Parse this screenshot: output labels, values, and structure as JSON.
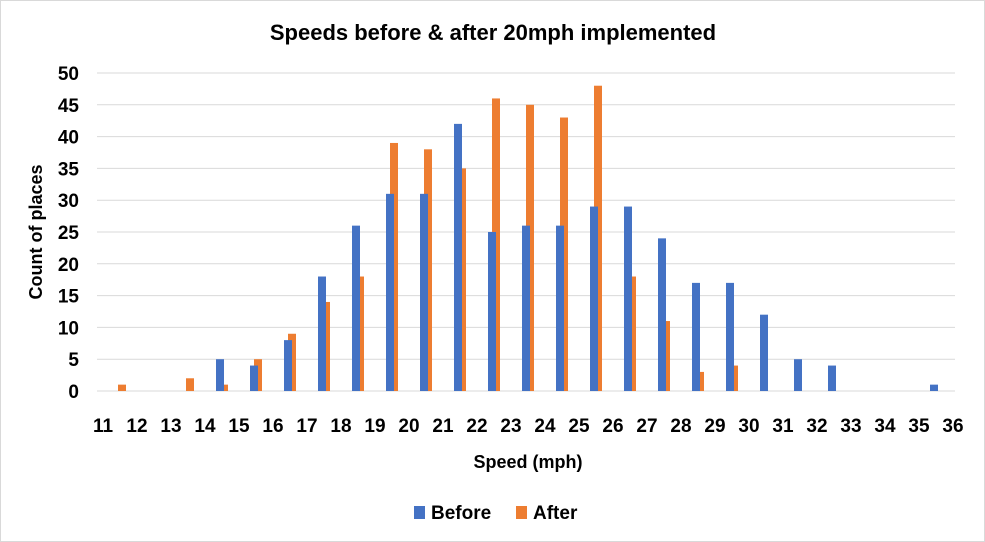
{
  "chart_data": {
    "type": "bar",
    "title": "Speeds before & after 20mph implemented",
    "xlabel": "Speed (mph)",
    "ylabel": "Count of places",
    "ylim": [
      0,
      50
    ],
    "yticks": [
      0,
      5,
      10,
      15,
      20,
      25,
      30,
      35,
      40,
      45,
      50
    ],
    "grid": true,
    "legend_position": "bottom",
    "categories": [
      "11",
      "12",
      "13",
      "14",
      "15",
      "16",
      "17",
      "18",
      "19",
      "20",
      "21",
      "22",
      "23",
      "24",
      "25",
      "26",
      "27",
      "28",
      "29",
      "30",
      "31",
      "32",
      "33",
      "34",
      "35",
      "36"
    ],
    "series": [
      {
        "name": "Before",
        "color": "#4472c4",
        "values": [
          0,
          0,
          0,
          0,
          5,
          4,
          8,
          18,
          26,
          31,
          31,
          42,
          25,
          26,
          26,
          29,
          29,
          24,
          17,
          17,
          12,
          5,
          4,
          0,
          0,
          1
        ]
      },
      {
        "name": "After",
        "color": "#ed7d31",
        "values": [
          1,
          0,
          2,
          1,
          5,
          9,
          14,
          18,
          39,
          38,
          35,
          46,
          45,
          43,
          48,
          18,
          11,
          3,
          4,
          0,
          0,
          0,
          0,
          0,
          0,
          0
        ]
      }
    ]
  }
}
